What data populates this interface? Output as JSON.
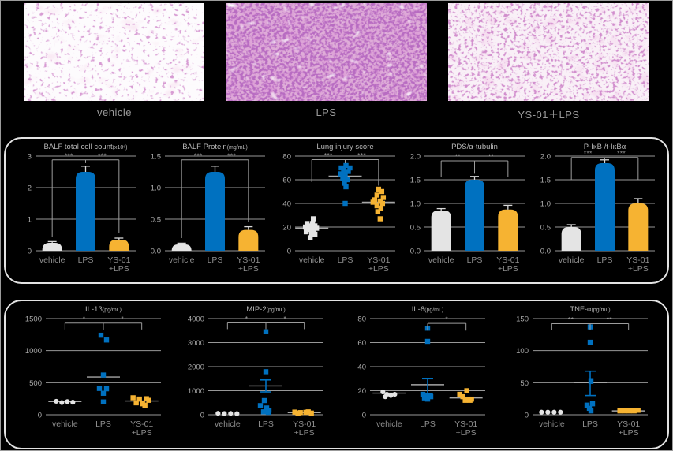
{
  "colors": {
    "blue": "#0071c0",
    "orange": "#f6b332",
    "gray": "#e4e4e4",
    "grid": "#989898",
    "tick": "#aaaaaa",
    "title": "#b8b8b8",
    "xlabel": "#8f8f8f",
    "sig": "#9c9c9c",
    "err": "#d9d9d9",
    "mean": "#a6a6a6",
    "panel_border": "#e3e3e3"
  },
  "micrographs": {
    "labels": [
      "vehicle",
      "LPS",
      "YS-01＋LPS"
    ]
  },
  "chart_data": [
    {
      "id": "balf-total-cell-count",
      "type": "bar",
      "title": "BALF total cell count",
      "unit": "(x10⁶)",
      "ylim": [
        0,
        3
      ],
      "yticks": [
        {
          "v": 0,
          "t": "0"
        },
        {
          "v": 1,
          "t": "1"
        },
        {
          "v": 2,
          "t": "2"
        },
        {
          "v": 3,
          "t": "3"
        }
      ],
      "categories": [
        "vehicle",
        "LPS",
        "YS-01\n+LPS"
      ],
      "values": [
        0.25,
        2.5,
        0.35
      ],
      "errors": [
        0.04,
        0.18,
        0.05
      ],
      "bar_colors": [
        "gray",
        "blue",
        "orange"
      ],
      "sig": [
        {
          "a": 0,
          "b": 1,
          "y": 2.88,
          "label": "***",
          "da": 0.45,
          "db": 2.78
        },
        {
          "a": 1,
          "b": 2,
          "y": 2.88,
          "label": "***",
          "da": 2.78,
          "db": 0.55
        }
      ]
    },
    {
      "id": "balf-protein",
      "type": "bar",
      "title": "BALF Protein",
      "unit": "(mg/mL)",
      "ylim": [
        0,
        1.5
      ],
      "yticks": [
        {
          "v": 0,
          "t": "0.0"
        },
        {
          "v": 0.5,
          "t": "0.5"
        },
        {
          "v": 1,
          "t": "1.0"
        },
        {
          "v": 1.5,
          "t": "1.5"
        }
      ],
      "categories": [
        "vehicle",
        "LPS",
        "YS-01\n+LPS"
      ],
      "values": [
        0.1,
        1.25,
        0.33
      ],
      "errors": [
        0.02,
        0.09,
        0.05
      ],
      "bar_colors": [
        "gray",
        "blue",
        "orange"
      ],
      "sig": [
        {
          "a": 0,
          "b": 1,
          "y": 1.44,
          "label": "***",
          "da": 0.2,
          "db": 1.38
        },
        {
          "a": 1,
          "b": 2,
          "y": 1.44,
          "label": "***",
          "da": 1.38,
          "db": 0.45
        }
      ]
    },
    {
      "id": "lung-injury-score",
      "type": "scatter",
      "title": "Lung injury score",
      "unit": "",
      "ylim": [
        0,
        80
      ],
      "yticks": [
        {
          "v": 0,
          "t": "0"
        },
        {
          "v": 20,
          "t": "20"
        },
        {
          "v": 40,
          "t": "40"
        },
        {
          "v": 60,
          "t": "60"
        },
        {
          "v": 80,
          "t": "80"
        }
      ],
      "categories": [
        "vehicle",
        "LPS",
        "YS-01\n+LPS"
      ],
      "groups": [
        {
          "color": "gray",
          "marker": "square",
          "mean": 19,
          "points": [
            [
              2,
              27
            ],
            [
              -6,
              23
            ],
            [
              1,
              23
            ],
            [
              -2,
              21
            ],
            [
              4,
              21
            ],
            [
              -8,
              20
            ],
            [
              6,
              19
            ],
            [
              -4,
              18
            ],
            [
              2,
              17
            ],
            [
              -7,
              16
            ],
            [
              0,
              15
            ],
            [
              4,
              14
            ],
            [
              -2,
              11
            ]
          ]
        },
        {
          "color": "blue",
          "marker": "square",
          "mean": 63,
          "points": [
            [
              1,
              72
            ],
            [
              -5,
              70
            ],
            [
              6,
              70
            ],
            [
              -2,
              68
            ],
            [
              4,
              67
            ],
            [
              -6,
              65
            ],
            [
              0,
              64
            ],
            [
              -3,
              61
            ],
            [
              3,
              60
            ],
            [
              -1,
              57
            ],
            [
              1,
              54
            ],
            [
              0,
              40
            ]
          ]
        },
        {
          "color": "orange",
          "marker": "square",
          "mean": 41,
          "points": [
            [
              0,
              52
            ],
            [
              4,
              50
            ],
            [
              -2,
              47
            ],
            [
              6,
              45
            ],
            [
              -5,
              43
            ],
            [
              2,
              42
            ],
            [
              -7,
              41
            ],
            [
              5,
              40
            ],
            [
              -2,
              38
            ],
            [
              3,
              36
            ],
            [
              -1,
              33
            ],
            [
              2,
              27
            ]
          ]
        }
      ],
      "sig": [
        {
          "a": 0,
          "b": 1,
          "y": 77,
          "label": "***",
          "da": 58,
          "db": 74
        },
        {
          "a": 1,
          "b": 2,
          "y": 77,
          "label": "***",
          "da": 74,
          "db": 55
        }
      ]
    },
    {
      "id": "pds-alpha-tubulin",
      "type": "bar",
      "title": "PDS/α-tubulin",
      "unit": "",
      "ylim": [
        0,
        2
      ],
      "yticks": [
        {
          "v": 0,
          "t": "0.0"
        },
        {
          "v": 0.5,
          "t": "0.5"
        },
        {
          "v": 1,
          "t": "1.0"
        },
        {
          "v": 1.5,
          "t": "1.5"
        },
        {
          "v": 2,
          "t": "2.0"
        }
      ],
      "categories": [
        "vehicle",
        "LPS",
        "YS-01\n+LPS"
      ],
      "values": [
        0.85,
        1.5,
        0.87
      ],
      "errors": [
        0.04,
        0.07,
        0.09
      ],
      "bar_colors": [
        "gray",
        "blue",
        "orange"
      ],
      "sig": [
        {
          "a": 0,
          "b": 1,
          "y": 1.9,
          "label": "**",
          "da": 1.56,
          "db": 1.63
        },
        {
          "a": 1,
          "b": 2,
          "y": 1.9,
          "label": "**",
          "da": 1.63,
          "db": 1.56
        }
      ]
    },
    {
      "id": "p-ikb-t-ikb",
      "type": "bar",
      "title": "P-IκB /t-IκBα",
      "unit": "",
      "ylim": [
        0,
        2
      ],
      "yticks": [
        {
          "v": 0,
          "t": "0.0"
        },
        {
          "v": 0.5,
          "t": "0.5"
        },
        {
          "v": 1,
          "t": "1.0"
        },
        {
          "v": 1.5,
          "t": "1.5"
        },
        {
          "v": 2,
          "t": "2.0"
        }
      ],
      "categories": [
        "vehicle",
        "LPS",
        "YS-01\n+LPS"
      ],
      "values": [
        0.5,
        1.85,
        1.0
      ],
      "errors": [
        0.05,
        0.07,
        0.1
      ],
      "bar_colors": [
        "gray",
        "blue",
        "orange"
      ],
      "sig": [
        {
          "a": 0,
          "b": 1,
          "y": 1.97,
          "label": "***",
          "da": 1.5,
          "db": 1.93
        },
        {
          "a": 1,
          "b": 2,
          "y": 1.97,
          "label": "***",
          "da": 1.93,
          "db": 1.5
        }
      ]
    },
    {
      "id": "il-1b",
      "type": "scatter",
      "title": "IL-1β",
      "unit": "(pg/mL)",
      "ylim": [
        0,
        1500
      ],
      "yticks": [
        {
          "v": 0,
          "t": "0"
        },
        {
          "v": 500,
          "t": "500"
        },
        {
          "v": 1000,
          "t": "1000"
        },
        {
          "v": 1500,
          "t": "1500"
        }
      ],
      "categories": [
        "vehicle",
        "LPS",
        "YS-01\n+LPS"
      ],
      "groups": [
        {
          "color": "gray",
          "marker": "circle",
          "mean": 205,
          "points": [
            [
              -11,
              210
            ],
            [
              -4,
              190
            ],
            [
              3,
              205
            ],
            [
              10,
              195
            ]
          ]
        },
        {
          "color": "blue",
          "marker": "square",
          "mean": 590,
          "points": [
            [
              -3,
              1240
            ],
            [
              4,
              1165
            ],
            [
              0,
              620
            ],
            [
              -5,
              410
            ],
            [
              4,
              405
            ],
            [
              0,
              335
            ],
            [
              0,
              200
            ]
          ]
        },
        {
          "color": "orange",
          "marker": "square",
          "mean": 215,
          "points": [
            [
              -11,
              265
            ],
            [
              -3,
              245
            ],
            [
              6,
              250
            ],
            [
              -7,
              185
            ],
            [
              1,
              170
            ],
            [
              9,
              225
            ],
            [
              4,
              150
            ]
          ]
        }
      ],
      "sig": [
        {
          "a": 0,
          "b": 1,
          "y": 1430,
          "label": "*",
          "da": 1330,
          "db": 1330
        },
        {
          "a": 1,
          "b": 2,
          "y": 1430,
          "label": "*",
          "da": 1330,
          "db": 1330
        }
      ]
    },
    {
      "id": "mip-2",
      "type": "scatter",
      "title": "MIP-2",
      "unit": "(pg/mL)",
      "ylim": [
        0,
        4000
      ],
      "yticks": [
        {
          "v": 0,
          "t": "0"
        },
        {
          "v": 1000,
          "t": "1000"
        },
        {
          "v": 2000,
          "t": "2000"
        },
        {
          "v": 3000,
          "t": "3000"
        },
        {
          "v": 4000,
          "t": "4000"
        }
      ],
      "categories": [
        "vehicle",
        "LPS",
        "YS-01\n+LPS"
      ],
      "groups": [
        {
          "color": "gray",
          "marker": "circle",
          "mean": null,
          "points": [
            [
              -12,
              60
            ],
            [
              -4,
              50
            ],
            [
              4,
              55
            ],
            [
              12,
              45
            ]
          ]
        },
        {
          "color": "blue",
          "marker": "square",
          "mean": 1200,
          "err": [
            950,
            1450
          ],
          "points": [
            [
              0,
              3450
            ],
            [
              0,
              1790
            ],
            [
              -2,
              590
            ],
            [
              -7,
              380
            ],
            [
              1,
              280
            ],
            [
              4,
              190
            ],
            [
              -3,
              120
            ],
            [
              3,
              100
            ]
          ]
        },
        {
          "color": "orange",
          "marker": "square",
          "mean": 90,
          "points": [
            [
              -12,
              110
            ],
            [
              -5,
              90
            ],
            [
              2,
              100
            ],
            [
              9,
              70
            ],
            [
              -8,
              60
            ],
            [
              5,
              120
            ]
          ]
        }
      ],
      "sig": [
        {
          "a": 0,
          "b": 1,
          "y": 3820,
          "label": "*",
          "da": 3560,
          "db": 3560
        },
        {
          "a": 1,
          "b": 2,
          "y": 3820,
          "label": "*",
          "da": 3560,
          "db": 3560
        }
      ]
    },
    {
      "id": "il-6",
      "type": "scatter",
      "title": "IL-6",
      "unit": "(pg/mL)",
      "ylim": [
        0,
        80
      ],
      "yticks": [
        {
          "v": 0,
          "t": "0"
        },
        {
          "v": 20,
          "t": "20"
        },
        {
          "v": 40,
          "t": "40"
        },
        {
          "v": 60,
          "t": "60"
        },
        {
          "v": 80,
          "t": "80"
        }
      ],
      "categories": [
        "vehicle",
        "LPS",
        "YS-01\n+LPS"
      ],
      "groups": [
        {
          "color": "gray",
          "marker": "circle",
          "mean": 18,
          "points": [
            [
              -8,
              19
            ],
            [
              -3,
              17
            ],
            [
              2,
              16
            ],
            [
              7,
              17
            ],
            [
              -5,
              15
            ]
          ]
        },
        {
          "color": "blue",
          "marker": "square",
          "mean": 25,
          "err": [
            17,
            30
          ],
          "points": [
            [
              0,
              72
            ],
            [
              0,
              61
            ],
            [
              -6,
              17
            ],
            [
              -2,
              16
            ],
            [
              3,
              16
            ],
            [
              -4,
              14
            ],
            [
              0,
              13
            ],
            [
              4,
              15
            ]
          ]
        },
        {
          "color": "orange",
          "marker": "square",
          "mean": 14,
          "points": [
            [
              -8,
              17
            ],
            [
              1,
              20
            ],
            [
              -4,
              15
            ],
            [
              3,
              13
            ],
            [
              7,
              13
            ],
            [
              -1,
              12
            ],
            [
              5,
              12
            ]
          ]
        }
      ],
      "sig": [
        {
          "a": 1,
          "b": 2,
          "y": 76,
          "label": "*",
          "da": 70,
          "db": 70
        }
      ]
    },
    {
      "id": "tnf-a",
      "type": "scatter",
      "title": "TNF-α",
      "unit": "(pg/mL)",
      "ylim": [
        0,
        150
      ],
      "yticks": [
        {
          "v": 0,
          "t": "0"
        },
        {
          "v": 50,
          "t": "50"
        },
        {
          "v": 100,
          "t": "100"
        },
        {
          "v": 150,
          "t": "150"
        }
      ],
      "categories": [
        "vehicle",
        "LPS",
        "YS-01\n+LPS"
      ],
      "groups": [
        {
          "color": "gray",
          "marker": "circle",
          "mean": null,
          "points": [
            [
              -13,
              4
            ],
            [
              -5,
              4
            ],
            [
              3,
              4
            ],
            [
              11,
              4
            ]
          ]
        },
        {
          "color": "blue",
          "marker": "square",
          "mean": 50,
          "err": [
            30,
            68
          ],
          "points": [
            [
              0,
              137
            ],
            [
              0,
              113
            ],
            [
              1,
              52
            ],
            [
              -4,
              15
            ],
            [
              3,
              17
            ],
            [
              -1,
              10
            ],
            [
              1,
              6
            ]
          ]
        },
        {
          "color": "orange",
          "marker": "square",
          "mean": 6,
          "points": [
            [
              -11,
              6
            ],
            [
              -5,
              6
            ],
            [
              1,
              6
            ],
            [
              7,
              6
            ],
            [
              12,
              7
            ]
          ]
        }
      ],
      "sig": [
        {
          "a": 0,
          "b": 1,
          "y": 142,
          "label": "**",
          "da": 132,
          "db": 132
        },
        {
          "a": 1,
          "b": 2,
          "y": 142,
          "label": "**",
          "da": 132,
          "db": 132
        }
      ]
    }
  ]
}
